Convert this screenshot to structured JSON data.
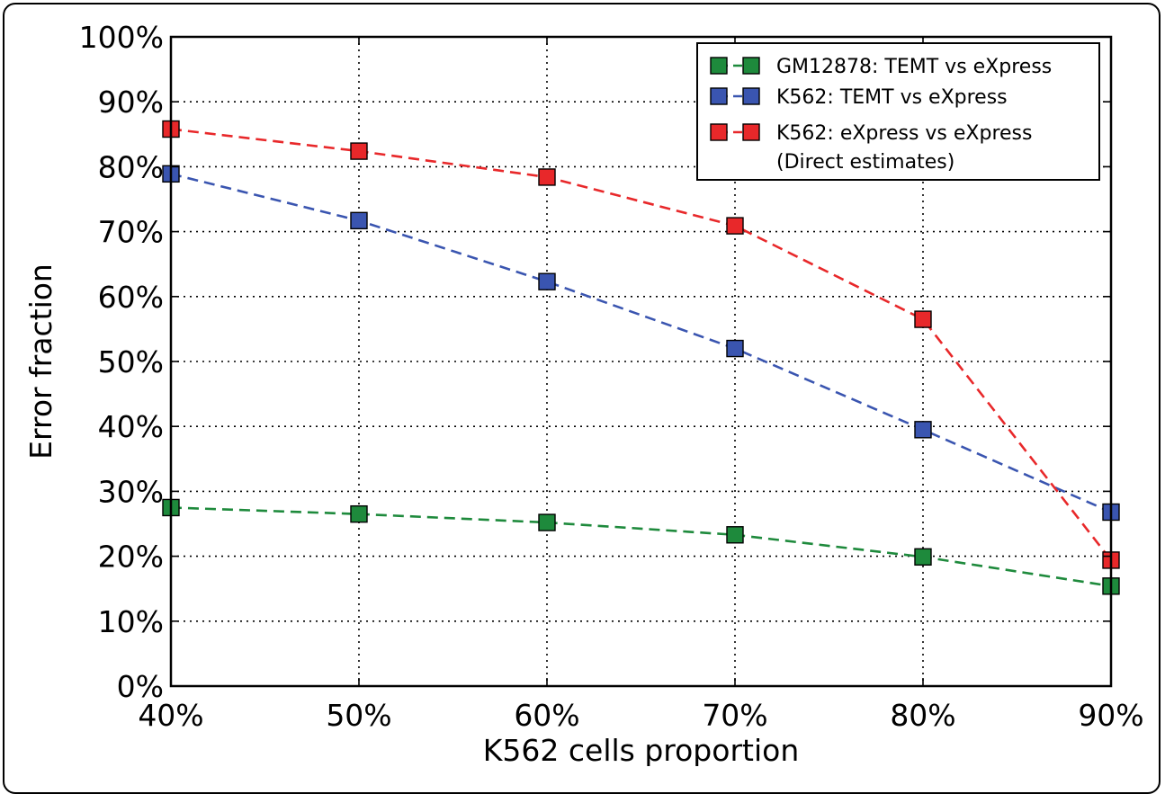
{
  "chart_data": {
    "type": "line",
    "xlabel": "K562 cells proportion",
    "ylabel": "Error fraction",
    "x": [
      40,
      50,
      60,
      70,
      80,
      90
    ],
    "x_tick_labels": [
      "40%",
      "50%",
      "60%",
      "70%",
      "80%",
      "90%"
    ],
    "y_tick_labels": [
      "0%",
      "10%",
      "20%",
      "30%",
      "40%",
      "50%",
      "60%",
      "70%",
      "80%",
      "90%",
      "100%"
    ],
    "xlim": [
      40,
      90
    ],
    "ylim": [
      0,
      100
    ],
    "grid": true,
    "grid_style": "dotted",
    "legend_position": "top-right",
    "series": [
      {
        "name": "GM12878: TEMT vs eXpress",
        "color": "#1e8a3c",
        "values": [
          27.5,
          26.5,
          25.2,
          23.3,
          19.9,
          15.4
        ]
      },
      {
        "name": "K562: TEMT vs eXpress",
        "color": "#3a55b0",
        "values": [
          78.9,
          71.7,
          62.3,
          52.0,
          39.5,
          26.8
        ]
      },
      {
        "name": "K562: eXpress vs eXpress",
        "name_line2": "(Direct estimates)",
        "color": "#e8282a",
        "values": [
          85.8,
          82.4,
          78.4,
          70.9,
          56.5,
          19.4
        ]
      }
    ]
  }
}
